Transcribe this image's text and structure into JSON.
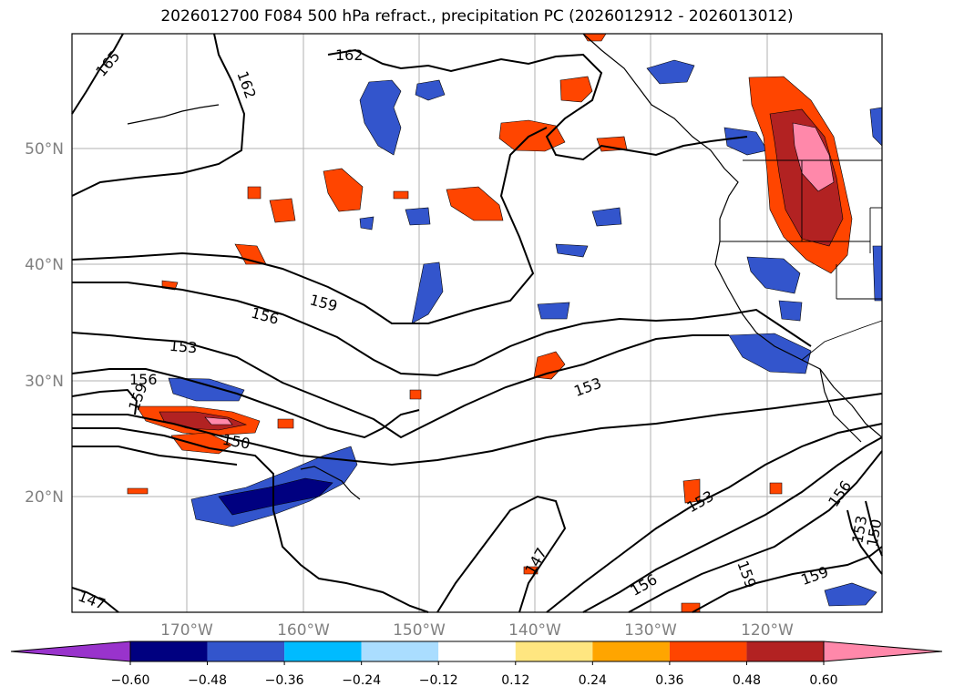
{
  "title": "2026012700 F084 500 hPa refract., precipitation PC (2026012912 - 2026013012)",
  "lat_labels": [
    "50°N",
    "40°N",
    "30°N",
    "20°N"
  ],
  "lon_labels": [
    "170°W",
    "160°W",
    "150°W",
    "140°W",
    "130°W",
    "120°W"
  ],
  "contour_labels": [
    {
      "text": "165"
    },
    {
      "text": "162"
    },
    {
      "text": "162"
    },
    {
      "text": "159"
    },
    {
      "text": "156"
    },
    {
      "text": "153"
    },
    {
      "text": "156"
    },
    {
      "text": "159"
    },
    {
      "text": "150"
    },
    {
      "text": "153"
    },
    {
      "text": "147"
    },
    {
      "text": "156"
    },
    {
      "text": "159"
    },
    {
      "text": "153"
    },
    {
      "text": "156"
    },
    {
      "text": "153"
    },
    {
      "text": "150"
    },
    {
      "text": "159"
    },
    {
      "text": "147"
    }
  ],
  "colorbar": {
    "ticks": [
      "−0.60",
      "−0.48",
      "−0.36",
      "−0.24",
      "−0.12",
      "0.12",
      "0.24",
      "0.36",
      "0.48",
      "0.60"
    ],
    "colors": [
      "#9933cc",
      "#000080",
      "#3355cc",
      "#00bbff",
      "#aaddff",
      "#ffffff",
      "#ffe680",
      "#ffa500",
      "#ff4500",
      "#b22222",
      "#ff88aa"
    ]
  },
  "palette": {
    "land_line": "#000000",
    "contour": "#000000",
    "grid": "#b0b0b0"
  }
}
